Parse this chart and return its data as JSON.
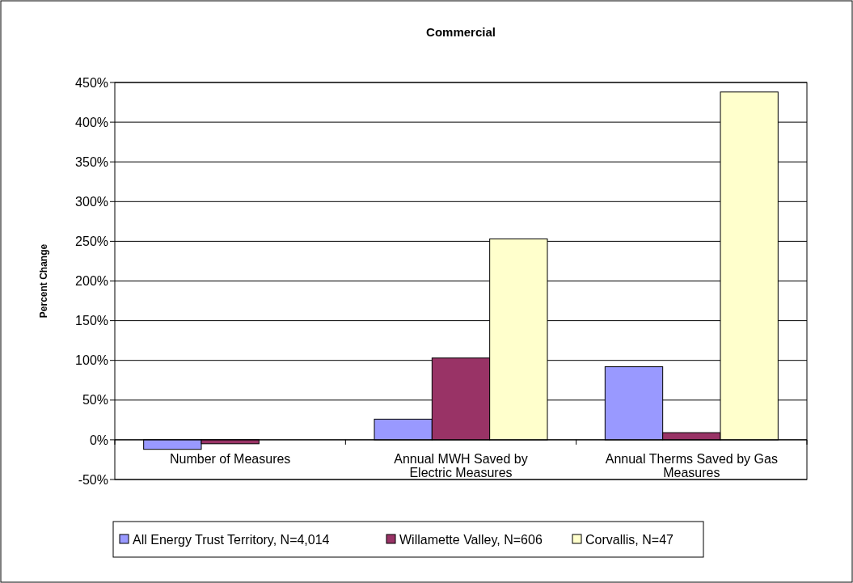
{
  "chart_data": {
    "type": "bar",
    "title": "Commercial",
    "ylabel": "Percent Change",
    "categories": [
      "Number of Measures",
      "Annual MWH Saved by Electric Measures",
      "Annual Therms Saved by Gas Measures"
    ],
    "series": [
      {
        "name": "All Energy Trust Territory, N=4,014",
        "color": "#9999ff",
        "values": [
          -12,
          26,
          92
        ]
      },
      {
        "name": "Willamette Valley, N=606",
        "color": "#993366",
        "values": [
          -5,
          103,
          9
        ]
      },
      {
        "name": "Corvallis, N=47",
        "color": "#ffffcc",
        "values": [
          null,
          253,
          438
        ]
      }
    ],
    "ylim": [
      -50,
      450
    ],
    "yticks": [
      {
        "value": -50,
        "label": "-50%"
      },
      {
        "value": 0,
        "label": "0%"
      },
      {
        "value": 50,
        "label": "50%"
      },
      {
        "value": 100,
        "label": "100%"
      },
      {
        "value": 150,
        "label": "150%"
      },
      {
        "value": 200,
        "label": "200%"
      },
      {
        "value": 250,
        "label": "250%"
      },
      {
        "value": 300,
        "label": "300%"
      },
      {
        "value": 350,
        "label": "350%"
      },
      {
        "value": 400,
        "label": "400%"
      },
      {
        "value": 450,
        "label": "450%"
      }
    ],
    "grid": "y",
    "legend": "bottom"
  }
}
